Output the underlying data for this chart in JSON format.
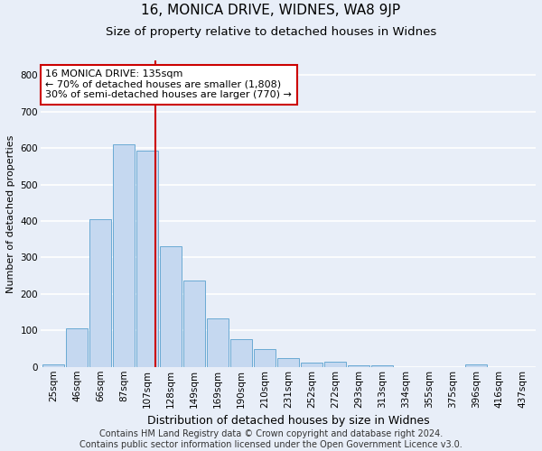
{
  "title": "16, MONICA DRIVE, WIDNES, WA8 9JP",
  "subtitle": "Size of property relative to detached houses in Widnes",
  "xlabel": "Distribution of detached houses by size in Widnes",
  "ylabel": "Number of detached properties",
  "footer_line1": "Contains HM Land Registry data © Crown copyright and database right 2024.",
  "footer_line2": "Contains public sector information licensed under the Open Government Licence v3.0.",
  "categories": [
    "25sqm",
    "46sqm",
    "66sqm",
    "87sqm",
    "107sqm",
    "128sqm",
    "149sqm",
    "169sqm",
    "190sqm",
    "210sqm",
    "231sqm",
    "252sqm",
    "272sqm",
    "293sqm",
    "313sqm",
    "334sqm",
    "355sqm",
    "375sqm",
    "396sqm",
    "416sqm",
    "437sqm"
  ],
  "values": [
    7,
    106,
    405,
    610,
    592,
    330,
    238,
    132,
    76,
    50,
    24,
    13,
    15,
    4,
    5,
    0,
    0,
    0,
    8,
    0,
    0
  ],
  "bar_color": "#c5d8f0",
  "bar_edge_color": "#6aaad4",
  "vline_color": "#cc0000",
  "annotation_text": "16 MONICA DRIVE: 135sqm\n← 70% of detached houses are smaller (1,808)\n30% of semi-detached houses are larger (770) →",
  "annotation_box_color": "#ffffff",
  "annotation_box_edge_color": "#cc0000",
  "ylim": [
    0,
    840
  ],
  "yticks": [
    0,
    100,
    200,
    300,
    400,
    500,
    600,
    700,
    800
  ],
  "background_color": "#e8eef8",
  "plot_bg_color": "#e8eef8",
  "grid_color": "#ffffff",
  "title_fontsize": 11,
  "subtitle_fontsize": 9.5,
  "xlabel_fontsize": 9,
  "ylabel_fontsize": 8,
  "tick_fontsize": 7.5,
  "footer_fontsize": 7,
  "annotation_fontsize": 8
}
